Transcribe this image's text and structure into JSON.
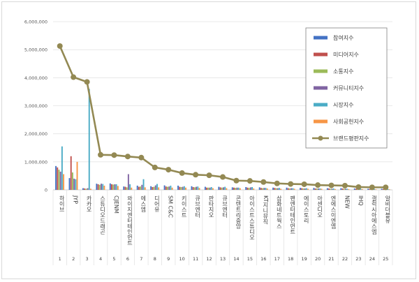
{
  "chart_data": {
    "type": "bar",
    "title": "",
    "xlabel": "",
    "ylabel": "",
    "ylim": [
      0,
      6000000
    ],
    "y_ticks": [
      "0",
      "1,000,000",
      "2,000,000",
      "3,000,000",
      "4,000,000",
      "5,000,000",
      "6,000,000"
    ],
    "grid": true,
    "legend_position": "right",
    "numbers": [
      "1",
      "2",
      "3",
      "4",
      "5",
      "6",
      "7",
      "8",
      "9",
      "10",
      "11",
      "12",
      "13",
      "14",
      "15",
      "16",
      "17",
      "18",
      "19",
      "20",
      "21",
      "22",
      "23",
      "24",
      "25"
    ],
    "categories": [
      "하이브",
      "JYP",
      "카카오",
      "스튜디오드래곤",
      "CJENM",
      "와이지엔터테인먼트",
      "에스엠",
      "디어유",
      "SM C&C",
      "키이스트",
      "큐브엔터",
      "판타지오",
      "큐브엔터",
      "콘텐트리중앙",
      "아이스트스튜디오",
      "KT지니뮤직",
      "삼화네트웍스",
      "팬엔터테인먼트",
      "에이스토리",
      "아센디오",
      "엔에스이엔엠",
      "NEW",
      "IHQ",
      "갤럭시아에스엠",
      "알비더블유"
    ],
    "series": [
      {
        "name": "참여지수",
        "color": "#4472c4",
        "values": [
          850000,
          420000,
          60000,
          220000,
          230000,
          120000,
          150000,
          130000,
          160000,
          150000,
          130000,
          110000,
          110000,
          90000,
          100000,
          90000,
          80000,
          80000,
          70000,
          70000,
          60000,
          60000,
          50000,
          40000,
          40000
        ]
      },
      {
        "name": "미디어지수",
        "color": "#c0504d",
        "values": [
          800000,
          1200000,
          50000,
          200000,
          200000,
          110000,
          110000,
          100000,
          120000,
          110000,
          100000,
          80000,
          90000,
          80000,
          80000,
          70000,
          70000,
          60000,
          60000,
          50000,
          50000,
          50000,
          40000,
          30000,
          30000
        ]
      },
      {
        "name": "소통지수",
        "color": "#9bbb59",
        "values": [
          720000,
          620000,
          40000,
          180000,
          190000,
          90000,
          120000,
          110000,
          110000,
          100000,
          90000,
          80000,
          80000,
          70000,
          70000,
          60000,
          60000,
          50000,
          50000,
          50000,
          40000,
          40000,
          40000,
          30000,
          30000
        ]
      },
      {
        "name": "커뮤니티지수",
        "color": "#8064a2",
        "values": [
          650000,
          400000,
          60000,
          220000,
          200000,
          560000,
          180000,
          160000,
          120000,
          110000,
          110000,
          80000,
          90000,
          80000,
          90000,
          70000,
          60000,
          60000,
          50000,
          50000,
          40000,
          40000,
          40000,
          30000,
          30000
        ]
      },
      {
        "name": "시장지수",
        "color": "#4bacc6",
        "values": [
          1550000,
          380000,
          3600000,
          210000,
          200000,
          200000,
          380000,
          210000,
          150000,
          130000,
          120000,
          100000,
          110000,
          80000,
          100000,
          70000,
          70000,
          60000,
          60000,
          50000,
          50000,
          40000,
          40000,
          30000,
          30000
        ]
      },
      {
        "name": "사회공헌지수",
        "color": "#f79646",
        "values": [
          560000,
          1000000,
          40000,
          150000,
          140000,
          80000,
          90000,
          90000,
          80000,
          80000,
          70000,
          60000,
          60000,
          60000,
          50000,
          50000,
          40000,
          40000,
          40000,
          40000,
          30000,
          30000,
          30000,
          20000,
          20000
        ]
      },
      {
        "name": "브랜드평판지수",
        "color": "#938953",
        "type": "line",
        "values": [
          5130000,
          4020000,
          3850000,
          1250000,
          1240000,
          1190000,
          1150000,
          800000,
          720000,
          600000,
          540000,
          520000,
          460000,
          330000,
          320000,
          280000,
          230000,
          210000,
          200000,
          170000,
          160000,
          150000,
          100000,
          90000,
          90000
        ]
      }
    ]
  }
}
